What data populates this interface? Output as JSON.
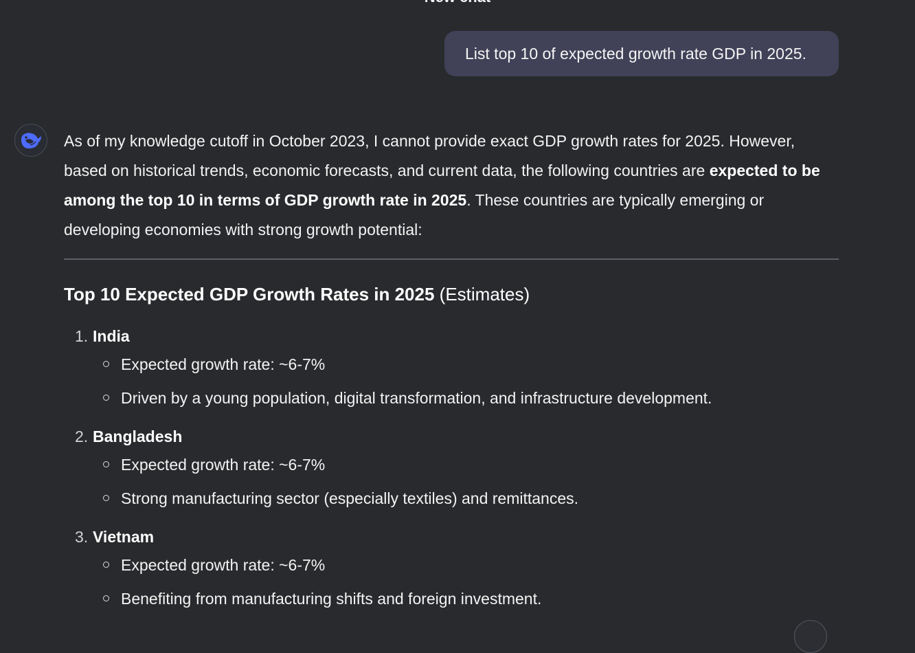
{
  "header": {
    "title": "New chat"
  },
  "user_message": {
    "text": "List top 10 of expected growth rate GDP in 2025."
  },
  "assistant": {
    "avatar_icon": "whale-logo-icon",
    "intro": {
      "part1": "As of my knowledge cutoff in October 2023, I cannot provide exact GDP growth rates for 2025. However, based on historical trends, economic forecasts, and current data, the following countries are ",
      "bold": "expected to be among the top 10 in terms of GDP growth rate in 2025",
      "part2": ". These countries are typically emerging or developing economies with strong growth potential:"
    },
    "section_heading": {
      "bold": "Top 10 Expected GDP Growth Rates in 2025",
      "normal": " (Estimates)"
    },
    "countries": [
      {
        "number": "1.",
        "name": "India",
        "details": [
          "Expected growth rate: ~6-7%",
          "Driven by a young population, digital transformation, and infrastructure development."
        ]
      },
      {
        "number": "2.",
        "name": "Bangladesh",
        "details": [
          "Expected growth rate: ~6-7%",
          "Strong manufacturing sector (especially textiles) and remittances."
        ]
      },
      {
        "number": "3.",
        "name": "Vietnam",
        "details": [
          "Expected growth rate: ~6-7%",
          "Benefiting from manufacturing shifts and foreign investment."
        ]
      }
    ]
  },
  "colors": {
    "background": "#292a2d",
    "user_bubble": "#414158",
    "accent_logo": "#4d6bfe",
    "divider": "#5d5f66"
  }
}
